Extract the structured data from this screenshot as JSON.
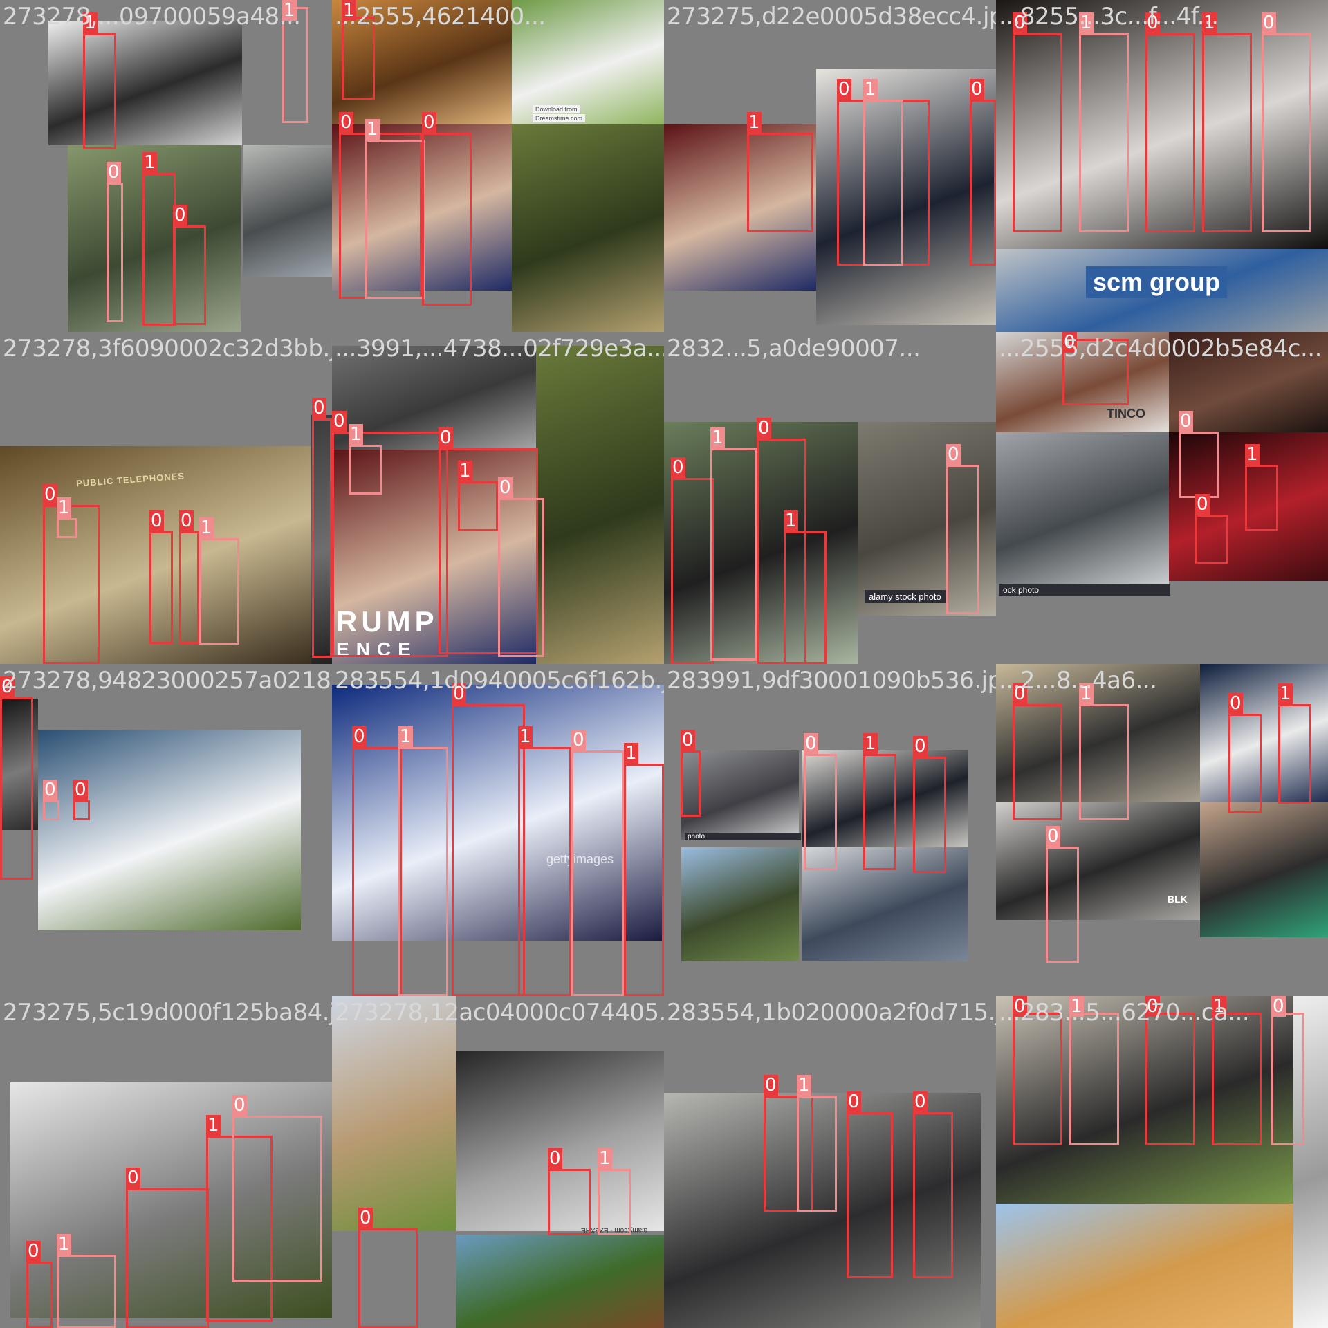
{
  "grid": {
    "columns": 4,
    "rows": 4
  },
  "box_colors": {
    "person": "#e8393d",
    "crowd": "#f08c8e",
    "tile_bg": "#808080",
    "title": "#d8d8d8"
  },
  "class_labels": [
    "0",
    "1"
  ],
  "tiles": [
    {
      "title": "273278,...09700059a48...",
      "photos": [
        {
          "grad": [
            "#efefef",
            "#2b2b2b",
            "#d4d4d4"
          ]
        },
        {
          "grad": [
            "#86976c",
            "#3d4a33",
            "#9aa58b"
          ]
        },
        {
          "grad": [
            "#b7b9b6",
            "#4a4d4f",
            "#9da6ad"
          ]
        }
      ],
      "watermarks": [],
      "boxes": [
        [
          "1",
          0.25,
          0.1,
          0.1,
          0.35
        ],
        [
          "0",
          0.32,
          0.55,
          0.05,
          0.42
        ],
        [
          "1",
          0.43,
          0.52,
          0.1,
          0.46
        ],
        [
          "0",
          0.52,
          0.68,
          0.1,
          0.3
        ],
        [
          "1",
          0.85,
          0.02,
          0.08,
          0.35
        ]
      ]
    },
    {
      "title": "...2555,4621400...",
      "photos": [
        {
          "grad": [
            "#c9873e",
            "#5a3516",
            "#e0b47b"
          ]
        },
        {
          "grad": [
            "#6d9b45",
            "#f0f0f0",
            "#8fb55e"
          ]
        },
        {
          "grad": [
            "#5b1215",
            "#d5b7a0",
            "#1e2a66"
          ]
        },
        {
          "grad": [
            "#6a7a3a",
            "#2e3a1c",
            "#b4a070"
          ]
        }
      ],
      "watermarks": [
        "Download from",
        "Dreamstime.com"
      ],
      "boxes": [
        [
          "0",
          0.02,
          0.4,
          0.25,
          0.5
        ],
        [
          "1",
          0.1,
          0.42,
          0.18,
          0.48
        ],
        [
          "0",
          0.27,
          0.4,
          0.15,
          0.52
        ],
        [
          "1",
          0.03,
          0.05,
          0.1,
          0.25
        ]
      ]
    },
    {
      "title": "273275,d22e0005d38ecc4.jpg",
      "photos": [
        {
          "grad": [
            "#5b1215",
            "#d5b7a0",
            "#1e2a66"
          ]
        },
        {
          "grad": [
            "#e7e4df",
            "#1c2230",
            "#c9c2b6"
          ]
        }
      ],
      "watermarks": [],
      "boxes": [
        [
          "0",
          0.52,
          0.3,
          0.28,
          0.5
        ],
        [
          "1",
          0.6,
          0.3,
          0.12,
          0.5
        ],
        [
          "0",
          0.92,
          0.3,
          0.08,
          0.5
        ],
        [
          "1",
          0.25,
          0.4,
          0.2,
          0.3
        ]
      ]
    },
    {
      "title": "...8255...3c...f...4f...",
      "photos": [
        {
          "grad": [
            "#1a1614",
            "#d9d6d3",
            "#0f0d0c"
          ]
        },
        {
          "grad": [
            "#bfc3c6",
            "#2f5f9f",
            "#9aa0a4"
          ]
        }
      ],
      "watermarks": [
        "scm group"
      ],
      "boxes": [
        [
          "0",
          0.05,
          0.1,
          0.15,
          0.6
        ],
        [
          "1",
          0.25,
          0.1,
          0.15,
          0.6
        ],
        [
          "0",
          0.45,
          0.1,
          0.15,
          0.6
        ],
        [
          "1",
          0.62,
          0.1,
          0.15,
          0.6
        ],
        [
          "0",
          0.8,
          0.1,
          0.15,
          0.6
        ]
      ]
    },
    {
      "title": "273278,3f6090002c32d3bb.jpg",
      "photos": [
        {
          "grad": [
            "#5f4a25",
            "#c8b890",
            "#3a2e1e"
          ]
        },
        {
          "grad": [
            "#3a3a3a",
            "#6e6e6e",
            "#202020"
          ]
        }
      ],
      "watermarks": [
        "PUBLIC TELEPHONES"
      ],
      "boxes": [
        [
          "0",
          0.13,
          0.52,
          0.17,
          0.48
        ],
        [
          "1",
          0.17,
          0.56,
          0.06,
          0.06
        ],
        [
          "0",
          0.45,
          0.6,
          0.07,
          0.34
        ],
        [
          "0",
          0.54,
          0.6,
          0.06,
          0.34
        ],
        [
          "1",
          0.6,
          0.62,
          0.12,
          0.32
        ],
        [
          "0",
          0.94,
          0.26,
          0.06,
          0.72
        ]
      ]
    },
    {
      "title": "...3991,...4738...02f729e3a...",
      "photos": [
        {
          "grad": [
            "#5b1215",
            "#d5b7a0",
            "#1e2a66"
          ]
        },
        {
          "grad": [
            "#707070",
            "#3a3a3a",
            "#a5a5a5"
          ]
        },
        {
          "grad": [
            "#6a7a3a",
            "#2e3a1c",
            "#b4a070"
          ]
        }
      ],
      "watermarks": [
        "RUMP",
        "ENCE"
      ],
      "boxes": [
        [
          "0",
          0.0,
          0.3,
          0.35,
          0.68
        ],
        [
          "1",
          0.05,
          0.34,
          0.1,
          0.15
        ],
        [
          "0",
          0.32,
          0.35,
          0.3,
          0.62
        ],
        [
          "1",
          0.38,
          0.45,
          0.12,
          0.15
        ],
        [
          "0",
          0.5,
          0.5,
          0.14,
          0.48
        ]
      ]
    },
    {
      "title": "2832...5,a0de90007...",
      "photos": [
        {
          "grad": [
            "#6b7e5b",
            "#1f1f1f",
            "#a9b6a0"
          ]
        },
        {
          "grad": [
            "#7d7a70",
            "#4a4740",
            "#b4aea0"
          ]
        }
      ],
      "watermarks": [
        "alamy stock photo"
      ],
      "boxes": [
        [
          "0",
          0.02,
          0.44,
          0.13,
          0.56
        ],
        [
          "1",
          0.14,
          0.35,
          0.14,
          0.64
        ],
        [
          "0",
          0.28,
          0.32,
          0.15,
          0.68
        ],
        [
          "1",
          0.36,
          0.6,
          0.13,
          0.4
        ],
        [
          "0",
          0.85,
          0.4,
          0.1,
          0.45
        ]
      ]
    },
    {
      "title": "...2555,d2c4d0002b5e84c...",
      "photos": [
        {
          "grad": [
            "#d4d4d4",
            "#7a4b38",
            "#e5e2de"
          ]
        },
        {
          "grad": [
            "#3a1e1a",
            "#6f4b3b",
            "#1c1210"
          ]
        },
        {
          "grad": [
            "#a0a4a8",
            "#454a4e",
            "#c9cdd0"
          ]
        },
        {
          "grad": [
            "#1b0608",
            "#b3202a",
            "#3c0c10"
          ]
        }
      ],
      "watermarks": [
        "TINCO",
        "ock photo"
      ],
      "boxes": [
        [
          "0",
          0.2,
          0.02,
          0.2,
          0.2
        ],
        [
          "0",
          0.55,
          0.3,
          0.12,
          0.2
        ],
        [
          "1",
          0.75,
          0.4,
          0.1,
          0.2
        ],
        [
          "0",
          0.6,
          0.55,
          0.1,
          0.15
        ]
      ]
    },
    {
      "title": "273278,94823000257a0218.jpg",
      "photos": [
        {
          "grad": [
            "#2a4f73",
            "#f2f4f6",
            "#4e6a2c"
          ]
        },
        {
          "grad": [
            "#151515",
            "#7a7a7a",
            "#2a2a2a"
          ]
        }
      ],
      "watermarks": [],
      "boxes": [
        [
          "0",
          0.0,
          0.1,
          0.1,
          0.55
        ],
        [
          "0",
          0.13,
          0.41,
          0.05,
          0.06
        ],
        [
          "0",
          0.22,
          0.41,
          0.05,
          0.06
        ]
      ]
    },
    {
      "title": "283554,1d0940005c6f162b.jpg",
      "photos": [
        {
          "grad": [
            "#0d2a7c",
            "#e9eef8",
            "#1a1a40"
          ]
        }
      ],
      "watermarks": [
        "gettyimages"
      ],
      "boxes": [
        [
          "0",
          0.06,
          0.25,
          0.15,
          0.75
        ],
        [
          "1",
          0.2,
          0.25,
          0.15,
          0.75
        ],
        [
          "0",
          0.36,
          0.12,
          0.22,
          0.88
        ],
        [
          "1",
          0.56,
          0.25,
          0.16,
          0.75
        ],
        [
          "0",
          0.72,
          0.26,
          0.16,
          0.74
        ],
        [
          "1",
          0.88,
          0.3,
          0.12,
          0.7
        ]
      ]
    },
    {
      "title": "283991,9df30001090b536.jpg",
      "photos": [
        {
          "grad": [
            "#8e8f92",
            "#3f3f45",
            "#d5d5d5"
          ]
        },
        {
          "grad": [
            "#dedbd5",
            "#1d2129",
            "#c8c6c0"
          ]
        },
        {
          "grad": [
            "#9bbce0",
            "#3c4a2c",
            "#6f8a4a"
          ]
        },
        {
          "grad": [
            "#d5d7d9",
            "#3e4a5c",
            "#7a8797"
          ]
        }
      ],
      "watermarks": [
        "photo"
      ],
      "boxes": [
        [
          "0",
          0.05,
          0.26,
          0.06,
          0.2
        ],
        [
          "0",
          0.42,
          0.27,
          0.1,
          0.35
        ],
        [
          "1",
          0.6,
          0.27,
          0.1,
          0.35
        ],
        [
          "0",
          0.75,
          0.28,
          0.1,
          0.35
        ]
      ]
    },
    {
      "title": "...2...8...4a6...",
      "photos": [
        {
          "grad": [
            "#c7b99a",
            "#303030",
            "#a8a090"
          ]
        },
        {
          "grad": [
            "#0e1e3c",
            "#eaeaea",
            "#1c2a4c"
          ]
        },
        {
          "grad": [
            "#d2d0cd",
            "#282828",
            "#a9a6a2"
          ]
        },
        {
          "grad": [
            "#c4a48c",
            "#2c2c2c",
            "#2fa37a"
          ]
        }
      ],
      "watermarks": [
        "BLK"
      ],
      "boxes": [
        [
          "0",
          0.05,
          0.12,
          0.15,
          0.35
        ],
        [
          "1",
          0.25,
          0.12,
          0.15,
          0.35
        ],
        [
          "0",
          0.7,
          0.15,
          0.1,
          0.3
        ],
        [
          "1",
          0.85,
          0.12,
          0.1,
          0.3
        ],
        [
          "0",
          0.15,
          0.55,
          0.1,
          0.35
        ]
      ]
    },
    {
      "title": "273275,5c19d000f125ba84.jpg",
      "photos": [
        {
          "grad": [
            "#e6e6e6",
            "#7b7b7b",
            "#3d4f20"
          ]
        }
      ],
      "watermarks": [],
      "boxes": [
        [
          "0",
          0.08,
          0.8,
          0.08,
          0.2
        ],
        [
          "1",
          0.17,
          0.78,
          0.18,
          0.22
        ],
        [
          "0",
          0.38,
          0.58,
          0.25,
          0.42
        ],
        [
          "1",
          0.62,
          0.42,
          0.2,
          0.56
        ],
        [
          "0",
          0.7,
          0.36,
          0.27,
          0.5
        ]
      ]
    },
    {
      "title": "273278,12ac04000c074405.jpg",
      "photos": [
        {
          "grad": [
            "#cfd6e3",
            "#b89a72",
            "#6d8f3a"
          ]
        },
        {
          "grad": [
            "#262626",
            "#a0a0a0",
            "#e6e6e6"
          ]
        },
        {
          "grad": [
            "#6a9abf",
            "#3f6b2a",
            "#7b4a2a"
          ]
        }
      ],
      "watermarks": [
        "alamy.com - EX2XHE"
      ],
      "boxes": [
        [
          "0",
          0.65,
          0.52,
          0.13,
          0.2
        ],
        [
          "1",
          0.8,
          0.52,
          0.1,
          0.2
        ],
        [
          "0",
          0.08,
          0.7,
          0.18,
          0.3
        ]
      ]
    },
    {
      "title": "283554,1b020000a2f0d715.jpg",
      "photos": [
        {
          "grad": [
            "#b6b6b2",
            "#2c2c2e",
            "#8a8a86"
          ]
        }
      ],
      "watermarks": [],
      "boxes": [
        [
          "0",
          0.3,
          0.3,
          0.15,
          0.35
        ],
        [
          "1",
          0.4,
          0.3,
          0.12,
          0.35
        ],
        [
          "0",
          0.55,
          0.35,
          0.14,
          0.5
        ],
        [
          "0",
          0.75,
          0.35,
          0.12,
          0.5
        ]
      ]
    },
    {
      "title": "...283...5...6270...ca...",
      "photos": [
        {
          "grad": [
            "#c9c2b5",
            "#2a2a2a",
            "#7a9a4a"
          ]
        },
        {
          "grad": [
            "#9dc3ea",
            "#d39a4c",
            "#e8b36a"
          ]
        },
        {
          "grad": [
            "#eeeeee",
            "#9a9a9a",
            "#f7f7f7"
          ]
        }
      ],
      "watermarks": [],
      "boxes": [
        [
          "0",
          0.05,
          0.05,
          0.15,
          0.4
        ],
        [
          "1",
          0.22,
          0.05,
          0.15,
          0.4
        ],
        [
          "0",
          0.45,
          0.05,
          0.15,
          0.4
        ],
        [
          "1",
          0.65,
          0.05,
          0.15,
          0.4
        ],
        [
          "0",
          0.83,
          0.05,
          0.1,
          0.4
        ]
      ]
    }
  ]
}
